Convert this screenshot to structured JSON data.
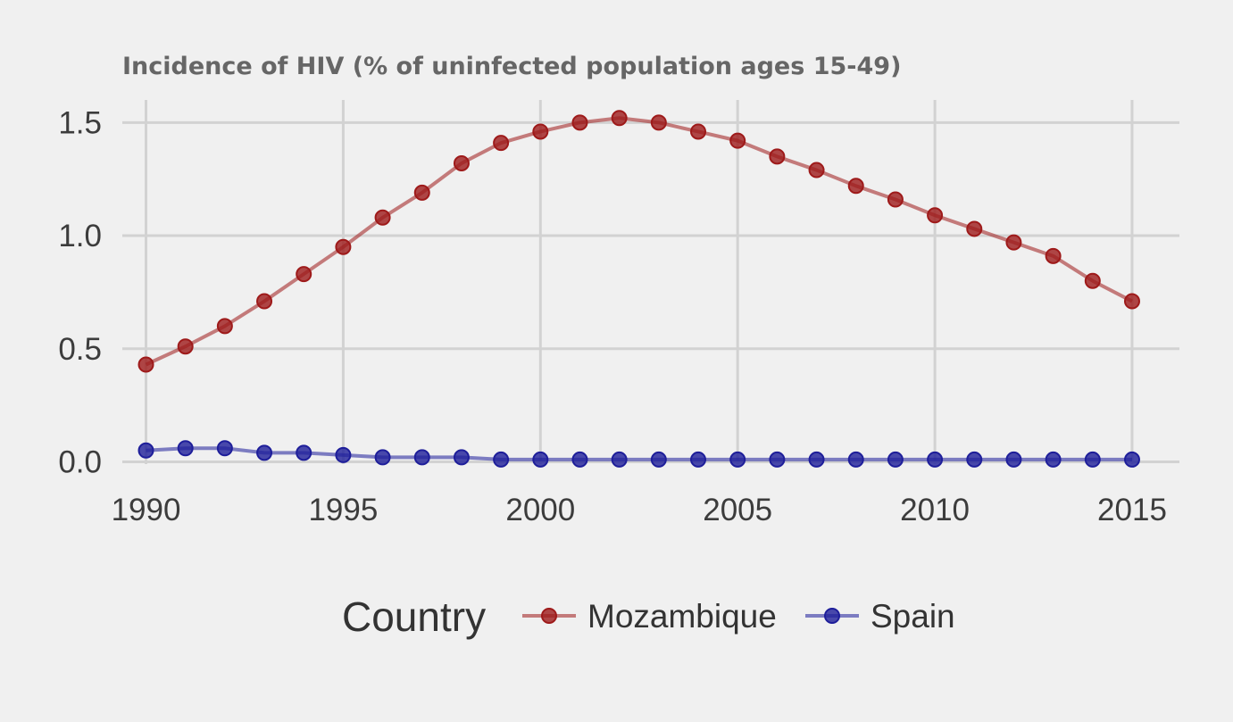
{
  "chart_data": {
    "type": "line",
    "title": "Incidence of HIV (% of uninfected population ages 15-49)",
    "xlabel": "",
    "ylabel": "",
    "x": [
      1990,
      1991,
      1992,
      1993,
      1994,
      1995,
      1996,
      1997,
      1998,
      1999,
      2000,
      2001,
      2002,
      2003,
      2004,
      2005,
      2006,
      2007,
      2008,
      2009,
      2010,
      2011,
      2012,
      2013,
      2014,
      2015
    ],
    "xlim": [
      1989.4,
      2016.2
    ],
    "ylim": [
      -0.01,
      1.6
    ],
    "x_ticks": [
      1990,
      1995,
      2000,
      2005,
      2010,
      2015
    ],
    "y_ticks": [
      0.0,
      0.5,
      1.0,
      1.5
    ],
    "y_tick_labels": [
      "0.0",
      "0.5",
      "1.0",
      "1.5"
    ],
    "grid": true,
    "legend": {
      "title": "Country",
      "placement": "bottom"
    },
    "series": [
      {
        "name": "Mozambique",
        "color": "#9e1a1a",
        "values": [
          0.43,
          0.51,
          0.6,
          0.71,
          0.83,
          0.95,
          1.08,
          1.19,
          1.32,
          1.41,
          1.46,
          1.5,
          1.52,
          1.5,
          1.46,
          1.42,
          1.35,
          1.29,
          1.22,
          1.16,
          1.09,
          1.03,
          0.97,
          0.91,
          0.8,
          0.71
        ]
      },
      {
        "name": "Spain",
        "color": "#1e1e9a",
        "values": [
          0.05,
          0.06,
          0.06,
          0.04,
          0.04,
          0.03,
          0.02,
          0.02,
          0.02,
          0.01,
          0.01,
          0.01,
          0.01,
          0.01,
          0.01,
          0.01,
          0.01,
          0.01,
          0.01,
          0.01,
          0.01,
          0.01,
          0.01,
          0.01,
          0.01,
          0.01
        ]
      }
    ]
  }
}
